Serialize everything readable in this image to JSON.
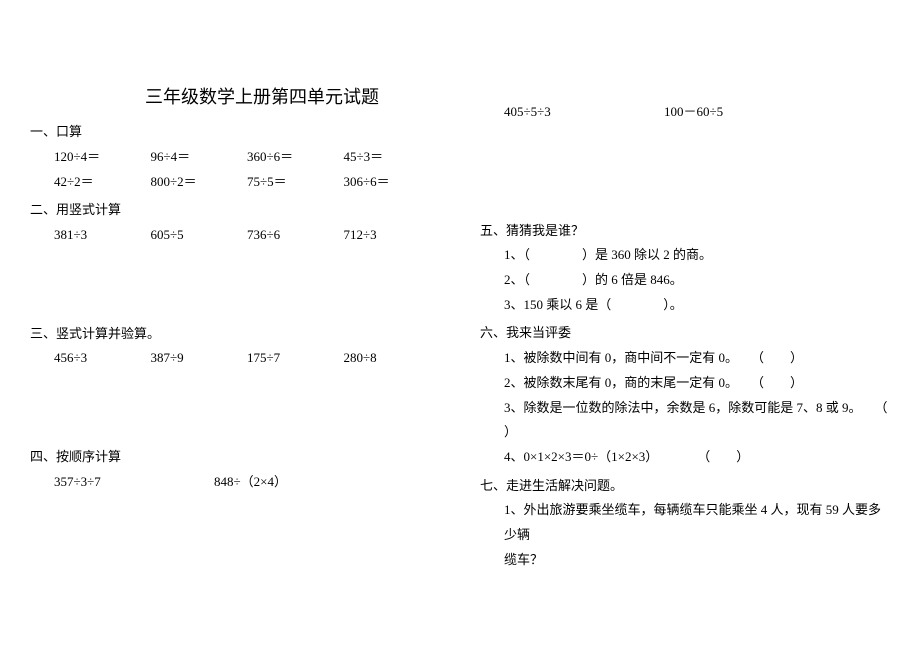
{
  "title": "三年级数学上册第四单元试题",
  "sec1": {
    "h": "一、口算",
    "r1a": "120÷4＝",
    "r1b": "96÷4＝",
    "r1c": "360÷6＝",
    "r1d": "45÷3＝",
    "r2a": "42÷2＝",
    "r2b": "800÷2＝",
    "r2c": "75÷5＝",
    "r2d": "306÷6＝"
  },
  "sec2": {
    "h": "二、用竖式计算",
    "a": "381÷3",
    "b": "605÷5",
    "c": "736÷6",
    "d": "712÷3"
  },
  "sec3": {
    "h": "三、竖式计算并验算。",
    "a": "456÷3",
    "b": "387÷9",
    "c": "175÷7",
    "d": "280÷8"
  },
  "sec4": {
    "h": "四、按顺序计算",
    "a": "357÷3÷7",
    "b": "848÷（2×4）",
    "c": "405÷5÷3",
    "d": "100－60÷5"
  },
  "sec5": {
    "h": "五、猜猜我是谁？",
    "l1": "1、（　　　　）是 360 除以 2 的商。",
    "l2": "2、（　　　　）的 6 倍是 846。",
    "l3": "3、150 乘以 6 是（　　　　）。"
  },
  "sec6": {
    "h": "六、我来当评委",
    "l1": "1、被除数中间有 0，商中间不一定有 0。　　（　　）",
    "l2": "2、被除数末尾有 0，商的末尾一定有 0。　　（　　）",
    "l3a": "3、除数是一位数的除法中，余数是 6，除数可能是 7、8 或 9。　　（",
    "l3b": "）",
    "l4": "4、0×1×2×3＝0÷（1×2×3）　　　　（　　）"
  },
  "sec7": {
    "h": "七、走进生活解决问题。",
    "l1a": "1、外出旅游要乘坐缆车，每辆缆车只能乘坐 4 人，现有 59 人要多少辆",
    "l1b": "缆车？"
  }
}
